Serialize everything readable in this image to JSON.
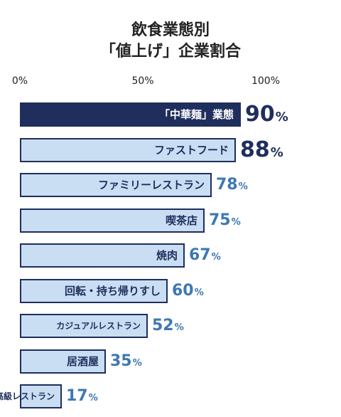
{
  "chart_data": {
    "type": "bar",
    "orientation": "horizontal",
    "title_lines": [
      "飲食業態別",
      "「値上げ」企業割合"
    ],
    "ticks": [
      "0%",
      "50%",
      "100%"
    ],
    "xlim": [
      0,
      100
    ],
    "unit": "%",
    "categories": [
      "「中華麺」業態",
      "ファストフード",
      "ファミリーレストラン",
      "喫茶店",
      "焼肉",
      "回転・持ち帰りすし",
      "カジュアルレストラン",
      "居酒屋",
      "高級レストラン"
    ],
    "values": [
      90,
      88,
      78,
      75,
      67,
      60,
      52,
      35,
      17
    ],
    "highlight_index": 0,
    "colors": {
      "highlight_bar": "#1f2e5c",
      "bar_fill": "#c9def3",
      "bar_border": "#1f2e5c",
      "top_value_text": "#1f2e5c",
      "value_text": "#3d78b3"
    }
  }
}
